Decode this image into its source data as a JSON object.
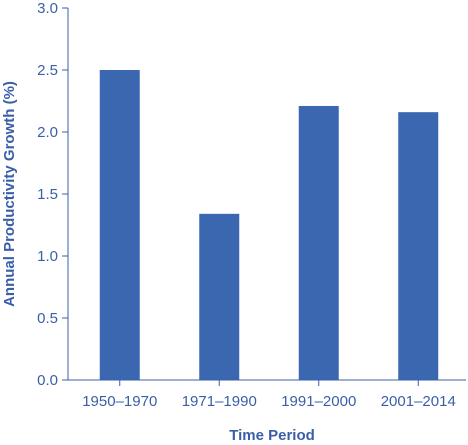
{
  "chart_data": {
    "type": "bar",
    "title": "",
    "xlabel": "Time Period",
    "ylabel": "Annual Productivity Growth (%)",
    "categories": [
      "1950–1970",
      "1971–1990",
      "1991–2000",
      "2001–2014"
    ],
    "values": [
      2.5,
      1.34,
      2.21,
      2.16
    ],
    "ylim": [
      0,
      3.0
    ],
    "yticks": [
      "0.0",
      "0.5",
      "1.0",
      "1.5",
      "2.0",
      "2.5",
      "3.0"
    ],
    "grid": false,
    "legend": "none"
  },
  "colors": {
    "bar": "#3a67b0",
    "axis": "#3a5fa8",
    "tick_text": "#3a5fa8",
    "label_text": "#3a5fa8",
    "background": "#ffffff"
  }
}
